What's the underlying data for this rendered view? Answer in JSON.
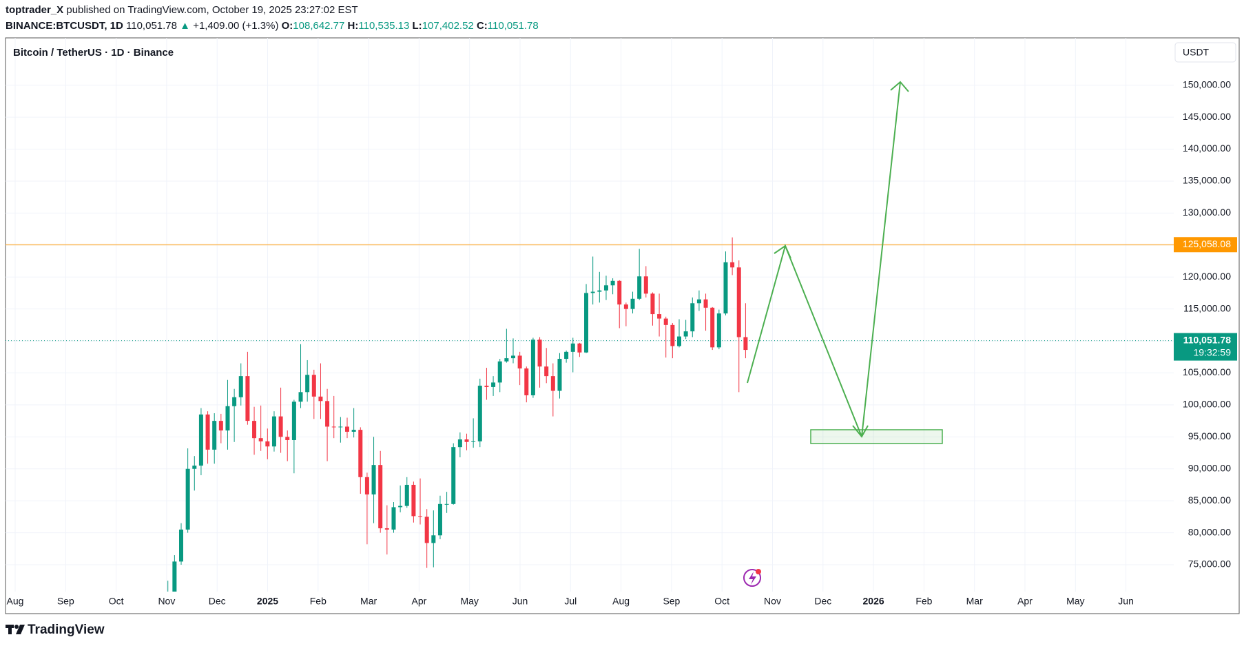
{
  "header": {
    "publisher": "toptrader_X",
    "published_text": "published on TradingView.com, October 19, 2025 23:27:02 EST",
    "symbol": "BINANCE:BTCUSDT, 1D",
    "last": "110,051.78",
    "arrow": "▲",
    "change": "+1,409.00 (+1.3%)",
    "o_label": "O:",
    "o": "108,642.77",
    "h_label": "H:",
    "h": "110,535.13",
    "l_label": "L:",
    "l": "107,402.52",
    "c_label": "C:",
    "c": "110,051.78"
  },
  "chart_data": {
    "type": "candlestick",
    "title": "Bitcoin / TetherUS · 1D · Binance",
    "currency": "USDT",
    "up_color": "#089981",
    "down_color": "#f23645",
    "grid": true,
    "ylim": [
      70800,
      157400
    ],
    "yticks": [
      {
        "value": 75000,
        "label": "75,000.00"
      },
      {
        "value": 80000,
        "label": "80,000.00"
      },
      {
        "value": 85000,
        "label": "85,000.00"
      },
      {
        "value": 90000,
        "label": "90,000.00"
      },
      {
        "value": 95000,
        "label": "95,000.00"
      },
      {
        "value": 100000,
        "label": "100,000.00"
      },
      {
        "value": 105000,
        "label": "105,000.00"
      },
      {
        "value": 110000,
        "label": "110,000.00"
      },
      {
        "value": 115000,
        "label": "115,000.00"
      },
      {
        "value": 120000,
        "label": "120,000.00"
      },
      {
        "value": 125000,
        "label": "125,000.00"
      },
      {
        "value": 130000,
        "label": "130,000.00"
      },
      {
        "value": 135000,
        "label": "135,000.00"
      },
      {
        "value": 140000,
        "label": "140,000.00"
      },
      {
        "value": 145000,
        "label": "145,000.00"
      },
      {
        "value": 150000,
        "label": "150,000.00"
      }
    ],
    "xticks": [
      "Aug",
      "Sep",
      "Oct",
      "Nov",
      "Dec",
      "2025",
      "Feb",
      "Mar",
      "Apr",
      "May",
      "Jun",
      "Jul",
      "Aug",
      "Sep",
      "Oct",
      "Nov",
      "Dec",
      "2026",
      "Feb",
      "Mar",
      "Apr",
      "May",
      "Jun"
    ],
    "level_line": {
      "value": 125058.08,
      "label": "125,058.08",
      "color": "#ff9800"
    },
    "last_price": {
      "value": 110051.78,
      "label": "110,051.78",
      "countdown": "19:32:59",
      "color": "#089981"
    },
    "ohlc": [
      [
        69500,
        72500,
        68800,
        70000
      ],
      [
        70000,
        76500,
        67500,
        75500
      ],
      [
        75500,
        81500,
        75000,
        80500
      ],
      [
        80500,
        93200,
        80000,
        90000
      ],
      [
        90000,
        92000,
        86600,
        90500
      ],
      [
        90500,
        99500,
        89000,
        98500
      ],
      [
        98500,
        99000,
        90800,
        93000
      ],
      [
        93000,
        98700,
        90800,
        97500
      ],
      [
        97500,
        98600,
        94000,
        96000
      ],
      [
        96000,
        103900,
        93000,
        99800
      ],
      [
        99800,
        102500,
        94200,
        101200
      ],
      [
        101200,
        106500,
        99900,
        104500
      ],
      [
        104500,
        108300,
        96900,
        97500
      ],
      [
        97500,
        99700,
        92200,
        94800
      ],
      [
        94800,
        99900,
        92800,
        94300
      ],
      [
        94300,
        96300,
        91500,
        93500
      ],
      [
        93500,
        99000,
        92700,
        98200
      ],
      [
        98200,
        102700,
        92500,
        95000
      ],
      [
        95000,
        96000,
        91200,
        94500
      ],
      [
        94500,
        100800,
        89300,
        100500
      ],
      [
        100500,
        109500,
        99500,
        102000
      ],
      [
        102000,
        107000,
        100500,
        104700
      ],
      [
        104700,
        105500,
        97800,
        101300
      ],
      [
        101300,
        106500,
        97800,
        100600
      ],
      [
        100600,
        102500,
        91200,
        96600
      ],
      [
        96600,
        101400,
        94800,
        96500
      ],
      [
        96500,
        98100,
        94100,
        96600
      ],
      [
        96600,
        98000,
        94800,
        95800
      ],
      [
        95800,
        99500,
        94900,
        96100
      ],
      [
        96100,
        96500,
        86100,
        88700
      ],
      [
        88700,
        89400,
        78200,
        86000
      ],
      [
        86000,
        95000,
        81500,
        90600
      ],
      [
        90600,
        92800,
        80000,
        80700
      ],
      [
        80700,
        84300,
        76600,
        80500
      ],
      [
        80500,
        84800,
        80000,
        84000
      ],
      [
        84000,
        87400,
        83200,
        84200
      ],
      [
        84200,
        88700,
        83900,
        87500
      ],
      [
        87500,
        88000,
        81600,
        82600
      ],
      [
        82600,
        88500,
        81300,
        82500
      ],
      [
        82500,
        83700,
        74500,
        78400
      ],
      [
        78400,
        83500,
        74600,
        79600
      ],
      [
        79600,
        85800,
        79000,
        84500
      ],
      [
        84500,
        86400,
        83100,
        84500
      ],
      [
        84500,
        94000,
        84400,
        93400
      ],
      [
        93400,
        95700,
        91800,
        94600
      ],
      [
        94600,
        95500,
        92900,
        94200
      ],
      [
        94200,
        97900,
        93300,
        94300
      ],
      [
        94300,
        104100,
        93400,
        103000
      ],
      [
        103000,
        105800,
        100800,
        102800
      ],
      [
        102800,
        104500,
        101400,
        103500
      ],
      [
        103500,
        107200,
        102000,
        106800
      ],
      [
        106800,
        111900,
        106600,
        107300
      ],
      [
        107300,
        110400,
        106500,
        107700
      ],
      [
        107700,
        108300,
        103100,
        105700
      ],
      [
        105700,
        106000,
        100400,
        101500
      ],
      [
        101500,
        110500,
        101100,
        110200
      ],
      [
        110200,
        110600,
        102700,
        106000
      ],
      [
        106000,
        108900,
        103400,
        104500
      ],
      [
        104500,
        106500,
        98200,
        102200
      ],
      [
        102200,
        108100,
        101000,
        107200
      ],
      [
        107200,
        108500,
        106600,
        108300
      ],
      [
        108300,
        110500,
        105100,
        109600
      ],
      [
        109600,
        109700,
        107500,
        108200
      ],
      [
        108200,
        118900,
        108100,
        117500
      ],
      [
        117500,
        123200,
        115700,
        117700
      ],
      [
        117700,
        120800,
        116000,
        117900
      ],
      [
        117900,
        120200,
        116400,
        118700
      ],
      [
        118700,
        119800,
        117300,
        119400
      ],
      [
        119400,
        119500,
        112000,
        115700
      ],
      [
        115700,
        116000,
        112300,
        115000
      ],
      [
        115000,
        117700,
        114300,
        116600
      ],
      [
        116600,
        124400,
        116400,
        120100
      ],
      [
        120100,
        121700,
        116800,
        117400
      ],
      [
        117400,
        117600,
        112400,
        114200
      ],
      [
        114200,
        117400,
        110700,
        113500
      ],
      [
        113500,
        113800,
        107400,
        112500
      ],
      [
        112500,
        112800,
        107300,
        109200
      ],
      [
        109200,
        113400,
        109000,
        110700
      ],
      [
        110700,
        113300,
        110300,
        111500
      ],
      [
        111500,
        116800,
        110600,
        115900
      ],
      [
        115900,
        117900,
        114700,
        116500
      ],
      [
        116500,
        117400,
        111600,
        115200
      ],
      [
        115200,
        115300,
        108600,
        109000
      ],
      [
        109000,
        114900,
        108700,
        114300
      ],
      [
        114300,
        124000,
        114000,
        122300
      ],
      [
        122300,
        126200,
        120300,
        121500
      ],
      [
        121500,
        122600,
        102000,
        110600
      ],
      [
        110600,
        115900,
        107300,
        108600
      ]
    ]
  },
  "footer": {
    "brand": "TradingView"
  }
}
